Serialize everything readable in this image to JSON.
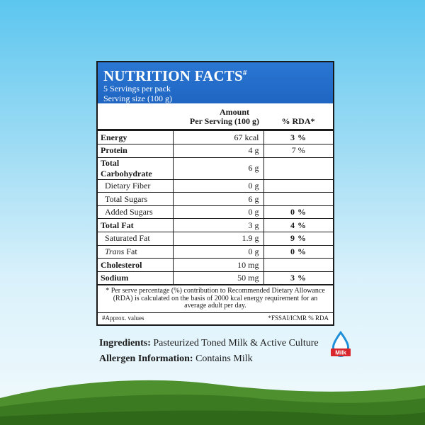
{
  "label": {
    "title": "NUTRITION FACTS",
    "title_mark": "#",
    "servings_per_pack": "5 Servings per pack",
    "serving_size": "Serving size (100 g)",
    "col_amount_line1": "Amount",
    "col_amount_line2": "Per Serving (100 g)",
    "col_rda": "% RDA*",
    "rows": [
      {
        "name": "Energy",
        "amount": "67 kcal",
        "rda": "3 %"
      },
      {
        "name": "Protein",
        "amount": "4 g",
        "rda": "7 %"
      },
      {
        "name": "Total Carbohydrate",
        "amount": "6 g",
        "rda": ""
      },
      {
        "name": "Dietary Fiber",
        "amount": "0 g",
        "rda": ""
      },
      {
        "name": "Total Sugars",
        "amount": "6 g",
        "rda": ""
      },
      {
        "name": "Added Sugars",
        "amount": "0 g",
        "rda": "0 %"
      },
      {
        "name": "Total Fat",
        "amount": "3 g",
        "rda": "4 %"
      },
      {
        "name": "Saturated Fat",
        "amount": "1.9 g",
        "rda": "9 %"
      },
      {
        "name_italic": "Trans",
        "name_rest": " Fat",
        "amount": "0 g",
        "rda": "0 %"
      },
      {
        "name": "Cholesterol",
        "amount": "10 mg",
        "rda": ""
      },
      {
        "name": "Sodium",
        "amount": "50 mg",
        "rda": "3 %"
      }
    ],
    "footnote": "* Per serve percentage (%) contribution to Recommended Dietary Allowance (RDA) is calculated on the basis of 2000 kcal energy requirement for an average adult per day.",
    "approx_note": "#Approx. values",
    "source_note": "*FSSAI/ICMR % RDA"
  },
  "info": {
    "ingredients_label": "Ingredients:",
    "ingredients_text": " Pasteurized Toned Milk & Active Culture",
    "allergen_label": "Allergen Information:",
    "allergen_text": " Contains Milk",
    "milk_badge_text": "Milk"
  },
  "colors": {
    "header_blue": "#2a77d3",
    "badge_red": "#d9262c",
    "badge_blue": "#1f8fd8"
  }
}
